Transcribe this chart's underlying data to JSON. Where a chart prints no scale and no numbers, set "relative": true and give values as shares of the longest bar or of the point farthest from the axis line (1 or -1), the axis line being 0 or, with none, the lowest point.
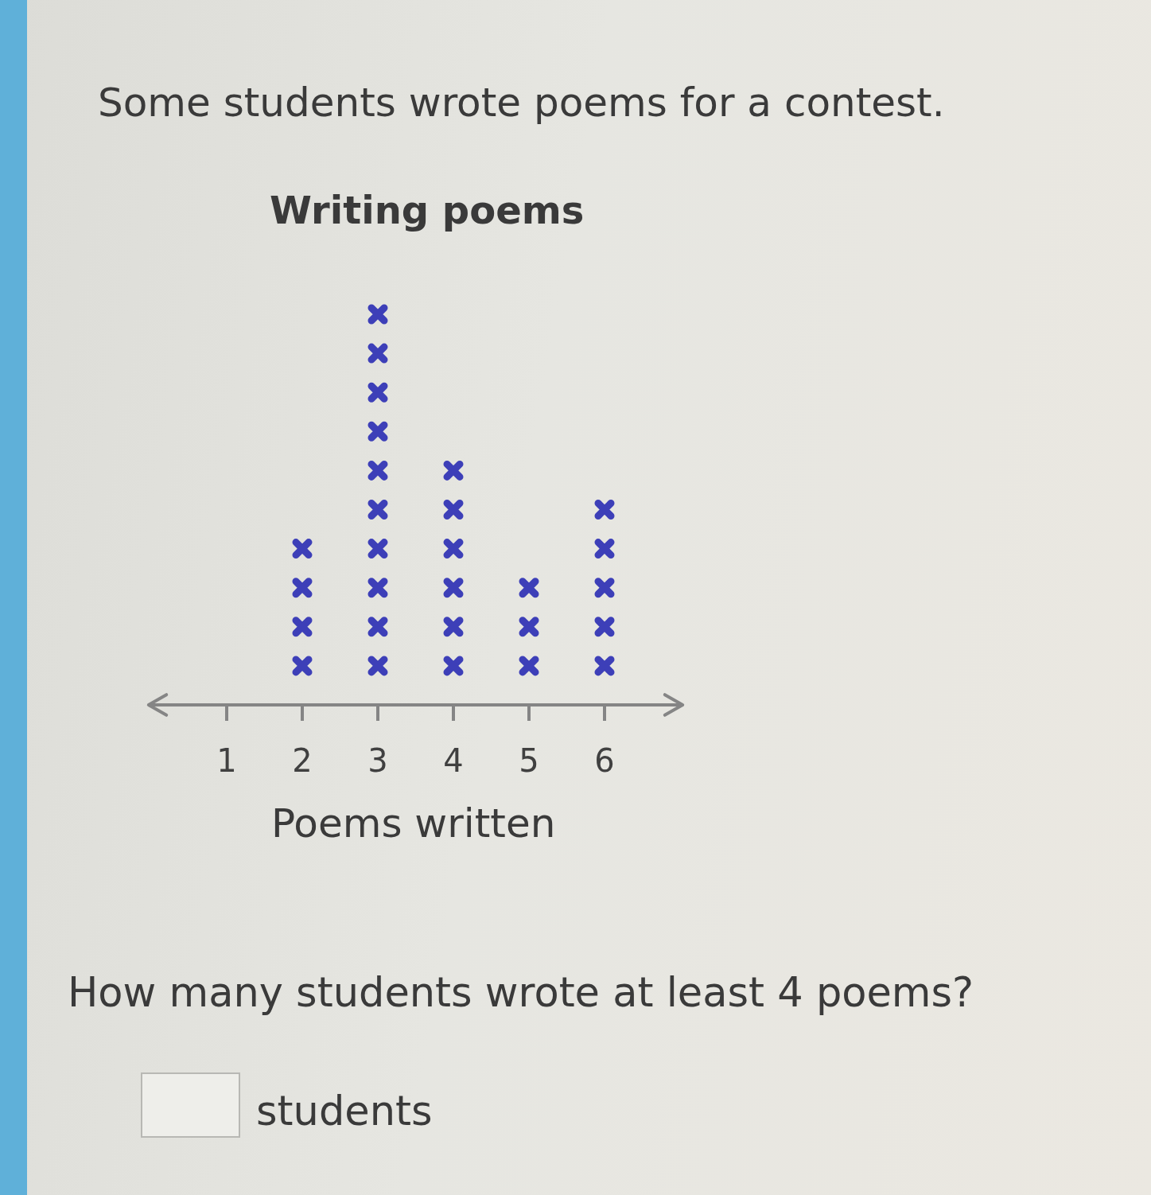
{
  "chart_data": {
    "type": "scatter",
    "title": "Writing poems",
    "xlabel": "Poems written",
    "annotations": [
      "Some students wrote poems for a contest.",
      "How many students wrote at least 4 poems?",
      "students"
    ],
    "x": [
      2,
      2,
      2,
      2,
      3,
      3,
      3,
      3,
      3,
      3,
      3,
      3,
      3,
      3,
      4,
      4,
      4,
      4,
      4,
      4,
      5,
      5,
      5,
      6,
      6,
      6,
      6,
      6
    ],
    "values": [
      0.1,
      0.2,
      0.3,
      0.4,
      0.1,
      0.2,
      0.3,
      0.4,
      0.5,
      0.6,
      0.7,
      0.8,
      0.9,
      1,
      0.1,
      0.2,
      0.3,
      0.4,
      0.5,
      0.6,
      0.1,
      0.2,
      0.3,
      0.1,
      0.2,
      0.3,
      0.4,
      0.5
    ],
    "relative": true,
    "color": "#3d3fb8",
    "marker": "cross",
    "xlim": [
      0,
      7
    ],
    "xticks": [
      1,
      2,
      3,
      4,
      5,
      6
    ],
    "tick_labels": "x"
  }
}
